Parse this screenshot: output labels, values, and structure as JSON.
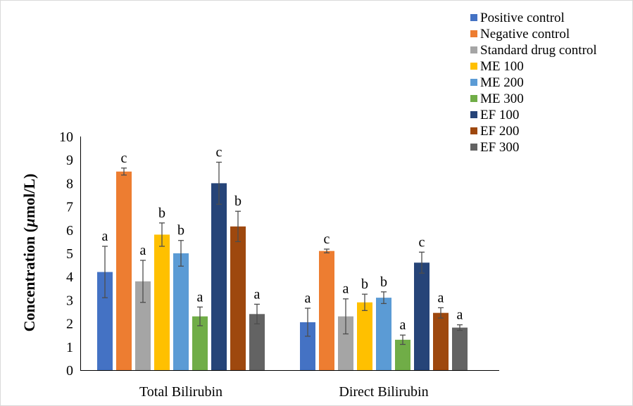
{
  "chart_data": {
    "type": "bar",
    "title": "",
    "xlabel": "",
    "ylabel_parts": [
      "Concentration  (",
      "µ",
      "mol/L)"
    ],
    "ylim": [
      0,
      10
    ],
    "yticks": [
      "0",
      "1",
      "2",
      "3",
      "4",
      "5",
      "6",
      "7",
      "8",
      "9",
      "10"
    ],
    "grid": false,
    "legend_position": "top-right",
    "categories": [
      "Total Bilirubin",
      "Direct Bilirubin"
    ],
    "series": [
      {
        "name": "Positive control",
        "color": "#4472C4",
        "values": [
          4.2,
          2.05
        ],
        "errors": [
          1.1,
          0.6
        ],
        "labels": [
          "a",
          "a"
        ]
      },
      {
        "name": "Negative control",
        "color": "#ED7D31",
        "values": [
          8.5,
          5.1
        ],
        "errors": [
          0.15,
          0.08
        ],
        "labels": [
          "c",
          "c"
        ]
      },
      {
        "name": "Standard drug control",
        "color": "#A5A5A5",
        "values": [
          3.8,
          2.3
        ],
        "errors": [
          0.9,
          0.75
        ],
        "labels": [
          "a",
          "a"
        ]
      },
      {
        "name": "ME 100",
        "color": "#FFC000",
        "values": [
          5.8,
          2.9
        ],
        "errors": [
          0.5,
          0.35
        ],
        "labels": [
          "b",
          "b"
        ]
      },
      {
        "name": "ME 200",
        "color": "#5B9BD5",
        "values": [
          5.0,
          3.1
        ],
        "errors": [
          0.55,
          0.25
        ],
        "labels": [
          "b",
          "b"
        ]
      },
      {
        "name": "ME 300",
        "color": "#70AD47",
        "values": [
          2.3,
          1.3
        ],
        "errors": [
          0.4,
          0.2
        ],
        "labels": [
          "a",
          "a"
        ]
      },
      {
        "name": "EF 100",
        "color": "#264478",
        "values": [
          8.0,
          4.6
        ],
        "errors": [
          0.9,
          0.45
        ],
        "labels": [
          "c",
          "c"
        ]
      },
      {
        "name": "EF 200",
        "color": "#9E480E",
        "values": [
          6.15,
          2.45
        ],
        "errors": [
          0.65,
          0.22
        ],
        "labels": [
          "b",
          "a"
        ]
      },
      {
        "name": "EF 300",
        "color": "#636363",
        "values": [
          2.4,
          1.82
        ],
        "errors": [
          0.42,
          0.12
        ],
        "labels": [
          "a",
          "a"
        ]
      }
    ]
  }
}
